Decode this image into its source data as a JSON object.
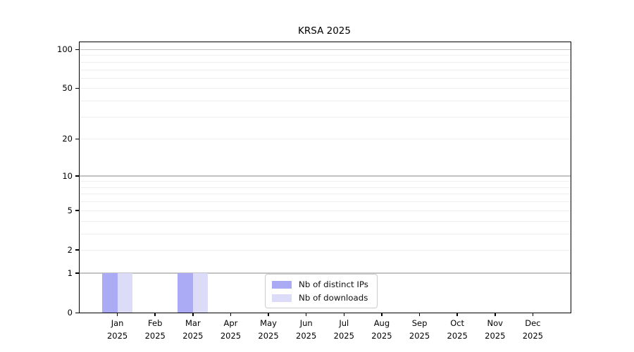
{
  "chart": {
    "title": "KRSA 2025"
  },
  "chart_data": {
    "type": "bar",
    "title": "KRSA 2025",
    "x_categories": [
      "Jan",
      "Feb",
      "Mar",
      "Apr",
      "May",
      "Jun",
      "Jul",
      "Aug",
      "Sep",
      "Oct",
      "Nov",
      "Dec"
    ],
    "x_year_sublabel": "2025",
    "series": [
      {
        "name": "Nb of distinct IPs",
        "color": "#aaaaf5",
        "values": [
          1,
          0,
          1,
          0,
          0,
          0,
          0,
          0,
          0,
          0,
          0,
          0
        ]
      },
      {
        "name": "Nb of downloads",
        "color": "#dcdcf8",
        "values": [
          1,
          0,
          1,
          0,
          0,
          0,
          0,
          0,
          0,
          0,
          0,
          0
        ]
      }
    ],
    "y_scale": "log1p",
    "y_ticks": [
      0,
      1,
      2,
      5,
      10,
      20,
      50,
      100
    ],
    "y_major_gridlines": [
      1,
      10,
      100
    ],
    "y_minor_gridlines": [
      2,
      3,
      4,
      5,
      6,
      7,
      8,
      9,
      20,
      30,
      40,
      50,
      60,
      70,
      80,
      90
    ],
    "ylim": [
      0,
      113
    ],
    "grid": true,
    "legend_position": "lower center",
    "colors": {
      "major_gridline": "#c3c3c3",
      "minor_gridline": "#eeeeee",
      "axis": "#000000",
      "legend_border": "#cccccc",
      "background": "#ffffff"
    }
  }
}
